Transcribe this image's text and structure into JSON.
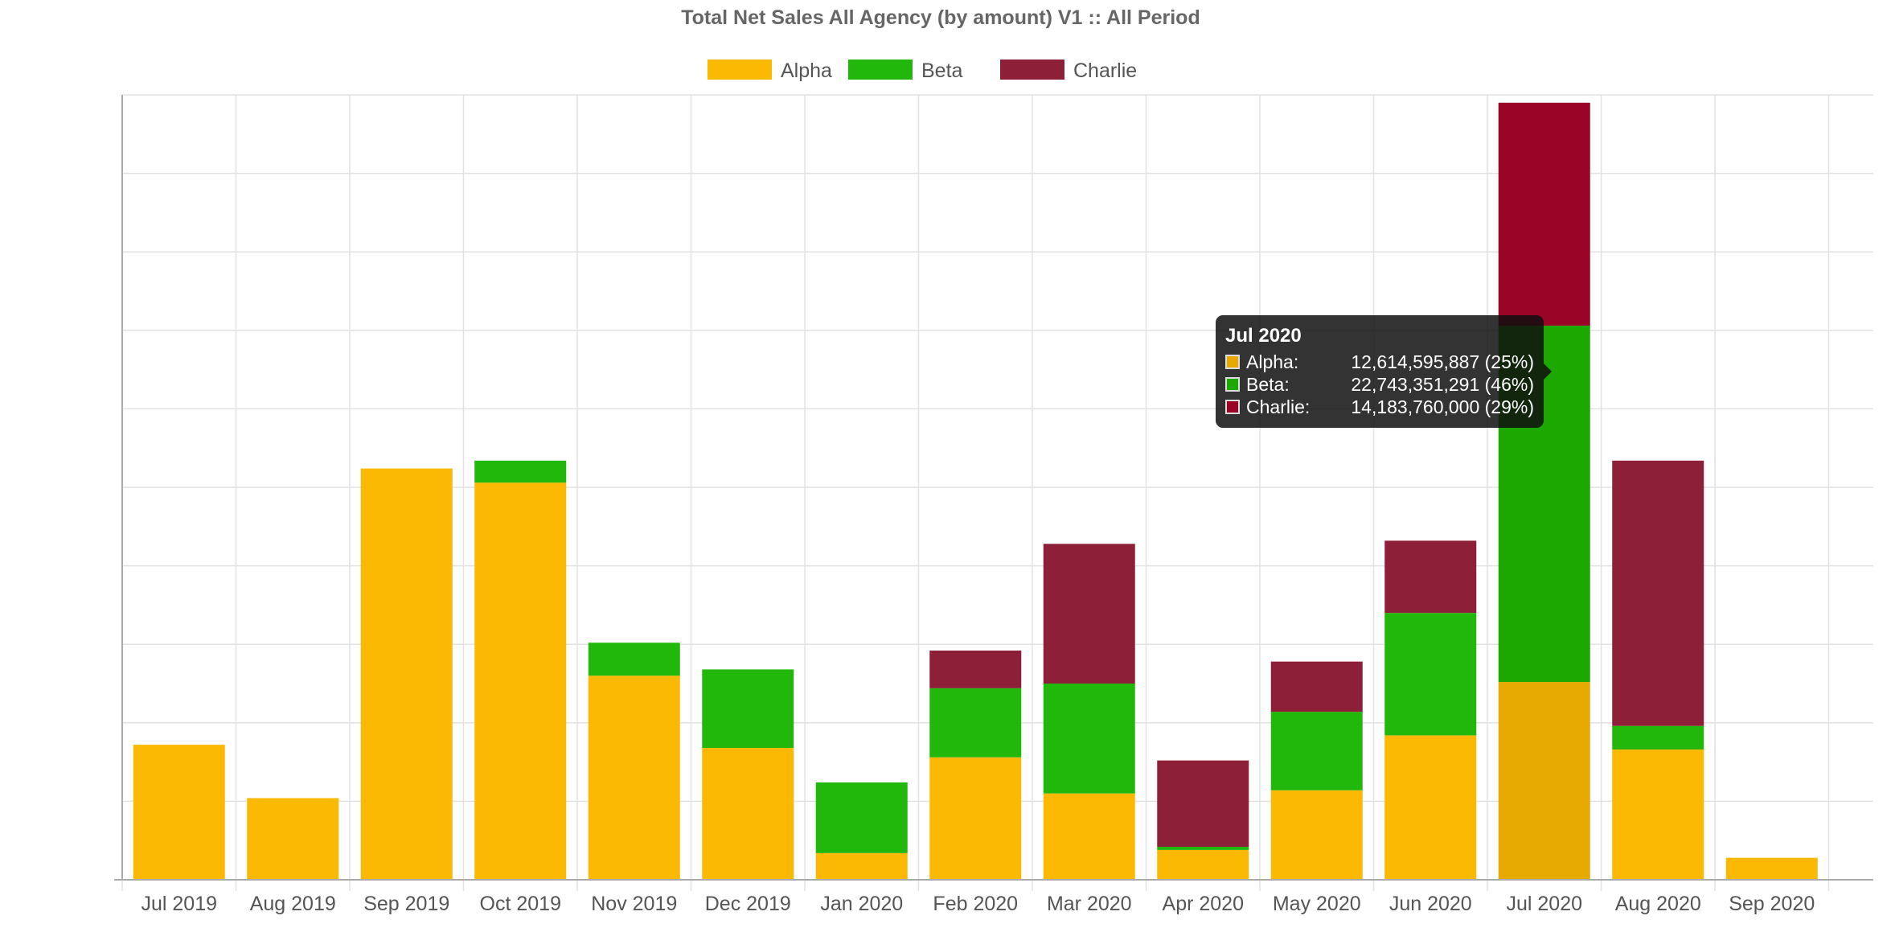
{
  "chart_data": {
    "type": "bar",
    "stacked": true,
    "title": "Total Net Sales All Agency (by amount) V1 :: All Period",
    "xlabel": "",
    "ylabel": "",
    "categories": [
      "Jul 2019",
      "Aug 2019",
      "Sep 2019",
      "Oct 2019",
      "Nov 2019",
      "Dec 2019",
      "Jan 2020",
      "Feb 2020",
      "Mar 2020",
      "Apr 2020",
      "May 2020",
      "Jun 2020",
      "Jul 2020",
      "Aug 2020",
      "Sep 2020"
    ],
    "series": [
      {
        "name": "Alpha",
        "color": "#FBB903",
        "values": [
          8.6,
          5.2,
          26.2,
          25.3,
          13.0,
          8.4,
          1.7,
          7.8,
          5.5,
          1.9,
          5.7,
          9.2,
          12.6,
          8.3,
          1.4
        ]
      },
      {
        "name": "Beta",
        "color": "#22B80B",
        "values": [
          0,
          0,
          0,
          1.4,
          2.1,
          5.0,
          4.5,
          4.4,
          7.0,
          0.2,
          5.0,
          7.8,
          22.7,
          1.5,
          0
        ]
      },
      {
        "name": "Charlie",
        "color": "#8E1F38",
        "values": [
          0,
          0,
          0,
          0,
          0,
          0,
          0,
          2.4,
          8.9,
          5.5,
          3.2,
          4.6,
          14.2,
          16.9,
          0
        ]
      }
    ],
    "value_unit_note": "values in billions (estimated from bar heights; y-axis has no printed tick labels)",
    "ylim": [
      0,
      50
    ],
    "grid": true,
    "legend_position": "top-center",
    "highlighted_category": "Jul 2020",
    "highlight_colors": [
      "#E5A902",
      "#1DA800",
      "#990427"
    ],
    "tooltip": {
      "title": "Jul 2020",
      "rows": [
        {
          "label": "Alpha:",
          "value": "12,614,595,887 (25%)",
          "color": "#E5A902"
        },
        {
          "label": "Beta:",
          "value": "22,743,351,291 (46%)",
          "color": "#1DA800"
        },
        {
          "label": "Charlie:",
          "value": "14,183,760,000 (29%)",
          "color": "#990427"
        }
      ]
    }
  }
}
